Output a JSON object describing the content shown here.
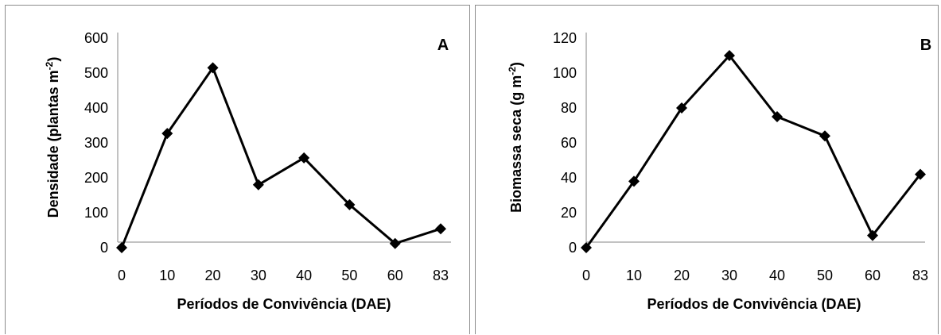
{
  "chart_data": [
    {
      "type": "line",
      "panel_label": "A",
      "categories": [
        "0",
        "10",
        "20",
        "30",
        "40",
        "50",
        "60",
        "83"
      ],
      "values": [
        0,
        327,
        515,
        180,
        257,
        123,
        12,
        54
      ],
      "xlabel": "Períodos de Convivência (DAE)",
      "ylabel_main": "Densidade (plantas m",
      "ylabel_sup": "-2",
      "ylabel_close": ")",
      "ylim": [
        0,
        600
      ],
      "yticks": [
        0,
        100,
        200,
        300,
        400,
        500,
        600
      ],
      "marker": "diamond",
      "line_color": "#000000"
    },
    {
      "type": "line",
      "panel_label": "B",
      "categories": [
        "0",
        "10",
        "20",
        "30",
        "40",
        "50",
        "60",
        "83"
      ],
      "values": [
        0,
        38,
        80,
        110,
        75,
        64,
        7,
        42
      ],
      "xlabel": "Períodos de Convivência (DAE)",
      "ylabel_main": "Biomassa seca (g m",
      "ylabel_sup": "-2",
      "ylabel_close": ")",
      "ylim": [
        0,
        120
      ],
      "yticks": [
        0,
        20,
        40,
        60,
        80,
        100,
        120
      ],
      "marker": "diamond",
      "line_color": "#000000"
    }
  ]
}
